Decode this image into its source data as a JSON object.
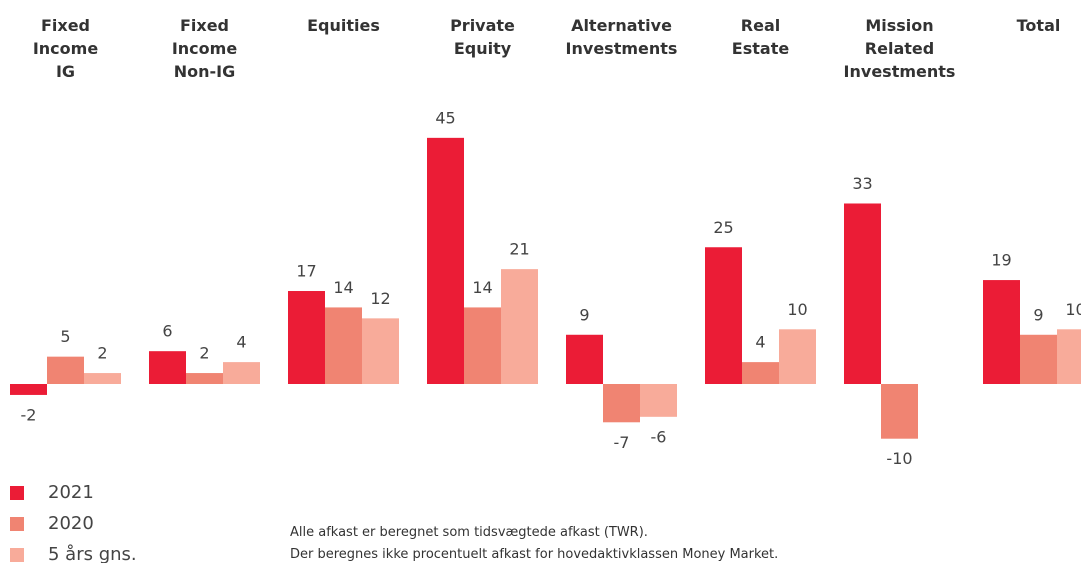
{
  "chart_data": {
    "type": "bar",
    "categories": [
      "Fixed\nIncome\nIG",
      "Fixed\nIncome\nNon-IG",
      "Equities",
      "Private\nEquity",
      "Alternative\nInvestments",
      "Real\nEstate",
      "Mission\nRelated\nInvestments",
      "Total"
    ],
    "series": [
      {
        "name": "2021",
        "color": "#eb1c36",
        "values": [
          -2,
          6,
          17,
          45,
          9,
          25,
          33,
          19
        ]
      },
      {
        "name": "2020",
        "color": "#f08472",
        "values": [
          5,
          2,
          14,
          14,
          -7,
          4,
          -10,
          9
        ]
      },
      {
        "name": "5 års gns.",
        "color": "#f8ab9a",
        "values": [
          2,
          4,
          12,
          21,
          -6,
          10,
          null,
          10
        ]
      }
    ],
    "notes": [
      "Alle afkast er beregnet som tidsvægtede afkast (TWR).",
      "Der beregnes ikke procentuelt afkast for hovedaktivklassen Money Market."
    ]
  }
}
